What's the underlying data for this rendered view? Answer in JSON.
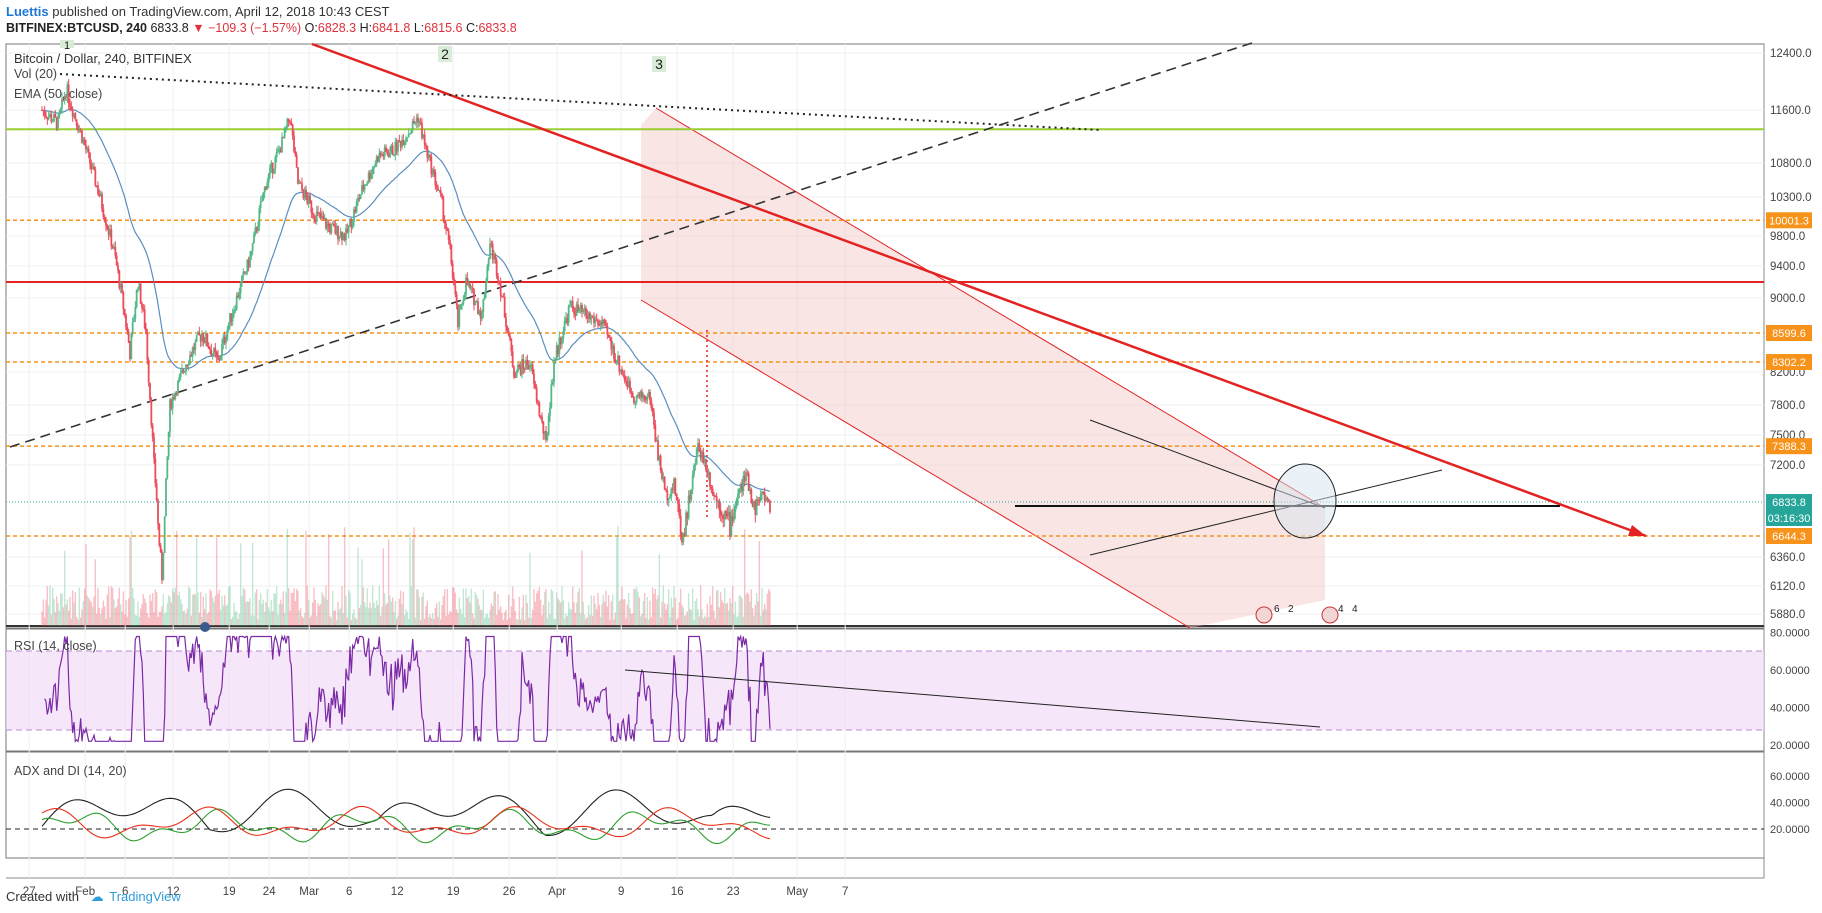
{
  "header": {
    "author": "Luettis",
    "published_text": "published on TradingView.com, April 12, 2018 10:43 CEST",
    "symbol": "BITFINEX:BTCUSD, 240",
    "price": "6833.8",
    "change": "−109.3 (−1.57%)",
    "o_label": "O:",
    "o_value": "6828.3",
    "h_label": "H:",
    "h_value": "6841.8",
    "l_label": "L:",
    "l_value": "6815.6",
    "c_label": "C:",
    "c_value": "6833.8"
  },
  "footer": {
    "created_with": "Created with",
    "brand": "TradingView"
  },
  "colors": {
    "up": "#53b987",
    "down": "#eb4d5c",
    "ema": "#5b8dbf",
    "rsi": "#7b2aa6",
    "adx": "#222222",
    "di_plus": "#2e9f2e",
    "di_minus": "#e8331c",
    "trend": "#e32222",
    "support": "#f7931a",
    "green_line": "#9acd32"
  },
  "chart_data": [
    {
      "type": "candlestick",
      "title": "Bitcoin / Dollar, 240, BITFINEX",
      "indicators": [
        "Vol (20)",
        "EMA (50, close)"
      ],
      "y_ticks": [
        "12400.0",
        "11600.0",
        "10800.0",
        "10300.0",
        "9800.0",
        "9400.0",
        "9000.0",
        "8200.0",
        "7800.0",
        "7500.0",
        "7200.0",
        "6360.0",
        "6120.0",
        "5880.0"
      ],
      "y_tick_values": [
        12400,
        11600,
        10800,
        10300,
        9800,
        9400,
        9000,
        8200,
        7800,
        7500,
        7200,
        6360,
        6120,
        5880
      ],
      "price_labels": [
        {
          "text": "10001.3",
          "value": 10001.3,
          "color": "#f7931a"
        },
        {
          "text": "8599.6",
          "value": 8599.6,
          "color": "#f7931a"
        },
        {
          "text": "8302.2",
          "value": 8302.2,
          "color": "#f7931a"
        },
        {
          "text": "7388.3",
          "value": 7388.3,
          "color": "#f7931a"
        },
        {
          "text": "6833.8",
          "value": 6833.8,
          "color": "#26a69a"
        },
        {
          "text": "03:16:30",
          "value": 6790,
          "color": "#26a69a"
        },
        {
          "text": "6644.3",
          "value": 6644.3,
          "color": "#f7931a"
        }
      ],
      "horizontal_lines": [
        {
          "value": 11310,
          "color": "#9acd32",
          "style": "solid"
        },
        {
          "value": 10001.3,
          "color": "#f7931a",
          "style": "dashed"
        },
        {
          "value": 9200,
          "color": "#e32222",
          "style": "solid"
        },
        {
          "value": 8599.6,
          "color": "#f7931a",
          "style": "dashed"
        },
        {
          "value": 8302.2,
          "color": "#f7931a",
          "style": "dashed"
        },
        {
          "value": 7388.3,
          "color": "#f7931a",
          "style": "dashed"
        },
        {
          "value": 6644.3,
          "color": "#f7931a",
          "style": "dashed"
        }
      ],
      "wave_labels": [
        "1",
        "2",
        "3"
      ],
      "event_markers": [
        "6",
        "2",
        "4",
        "4"
      ],
      "close_path": [
        {
          "day": 0,
          "close": 11600
        },
        {
          "day": 2,
          "close": 11400
        },
        {
          "day": 3,
          "close": 11900
        },
        {
          "day": 5,
          "close": 11200
        },
        {
          "day": 7,
          "close": 10400
        },
        {
          "day": 9,
          "close": 9600
        },
        {
          "day": 11,
          "close": 8400
        },
        {
          "day": 12,
          "close": 9200
        },
        {
          "day": 13,
          "close": 8600
        },
        {
          "day": 14,
          "close": 7200
        },
        {
          "day": 15,
          "close": 6200
        },
        {
          "day": 16,
          "close": 7800
        },
        {
          "day": 18,
          "close": 8300
        },
        {
          "day": 20,
          "close": 8600
        },
        {
          "day": 22,
          "close": 8300
        },
        {
          "day": 24,
          "close": 8900
        },
        {
          "day": 26,
          "close": 9500
        },
        {
          "day": 28,
          "close": 10500
        },
        {
          "day": 30,
          "close": 11100
        },
        {
          "day": 31,
          "close": 11500
        },
        {
          "day": 32,
          "close": 10500
        },
        {
          "day": 34,
          "close": 10100
        },
        {
          "day": 36,
          "close": 9900
        },
        {
          "day": 38,
          "close": 9800
        },
        {
          "day": 40,
          "close": 10400
        },
        {
          "day": 42,
          "close": 10900
        },
        {
          "day": 44,
          "close": 11000
        },
        {
          "day": 46,
          "close": 11300
        },
        {
          "day": 47,
          "close": 11500
        },
        {
          "day": 48,
          "close": 11000
        },
        {
          "day": 50,
          "close": 10200
        },
        {
          "day": 51,
          "close": 9600
        },
        {
          "day": 52,
          "close": 8700
        },
        {
          "day": 53,
          "close": 9200
        },
        {
          "day": 55,
          "close": 8800
        },
        {
          "day": 56,
          "close": 9700
        },
        {
          "day": 57,
          "close": 9300
        },
        {
          "day": 59,
          "close": 8200
        },
        {
          "day": 61,
          "close": 8300
        },
        {
          "day": 62,
          "close": 7800
        },
        {
          "day": 63,
          "close": 7400
        },
        {
          "day": 64,
          "close": 8300
        },
        {
          "day": 66,
          "close": 8900
        },
        {
          "day": 68,
          "close": 8800
        },
        {
          "day": 70,
          "close": 8700
        },
        {
          "day": 72,
          "close": 8300
        },
        {
          "day": 74,
          "close": 7900
        },
        {
          "day": 76,
          "close": 7900
        },
        {
          "day": 77,
          "close": 7300
        },
        {
          "day": 78,
          "close": 6900
        },
        {
          "day": 79,
          "close": 7000
        },
        {
          "day": 80,
          "close": 6600
        },
        {
          "day": 81,
          "close": 6900
        },
        {
          "day": 82,
          "close": 7400
        },
        {
          "day": 83,
          "close": 7200
        },
        {
          "day": 84,
          "close": 6900
        },
        {
          "day": 85,
          "close": 6800
        },
        {
          "day": 86,
          "close": 6700
        },
        {
          "day": 87,
          "close": 6900
        },
        {
          "day": 88,
          "close": 7100
        },
        {
          "day": 89,
          "close": 6800
        },
        {
          "day": 90,
          "close": 6900
        },
        {
          "day": 91,
          "close": 6834
        }
      ],
      "x_ticks": [
        {
          "label": "27",
          "day": -1.6
        },
        {
          "label": "Feb",
          "day": 5.4
        },
        {
          "label": "6",
          "day": 10.4
        },
        {
          "label": "12",
          "day": 16.4
        },
        {
          "label": "19",
          "day": 23.4
        },
        {
          "label": "24",
          "day": 28.4
        },
        {
          "label": "Mar",
          "day": 33.4
        },
        {
          "label": "6",
          "day": 38.4
        },
        {
          "label": "12",
          "day": 44.4
        },
        {
          "label": "19",
          "day": 51.4
        },
        {
          "label": "26",
          "day": 58.4
        },
        {
          "label": "Apr",
          "day": 64.4
        },
        {
          "label": "9",
          "day": 72.4
        },
        {
          "label": "16",
          "day": 79.4
        },
        {
          "label": "23",
          "day": 86.4
        },
        {
          "label": "May",
          "day": 94.4
        },
        {
          "label": "7",
          "day": 100.4
        }
      ]
    },
    {
      "type": "line",
      "title": "RSI (14, close)",
      "y_ticks": [
        "80.0000",
        "60.0000",
        "40.0000",
        "20.0000"
      ],
      "y_tick_values": [
        80,
        60,
        40,
        20
      ],
      "band": [
        30,
        70
      ]
    },
    {
      "type": "line",
      "title": "ADX and DI (14, 20)",
      "y_ticks": [
        "60.0000",
        "40.0000",
        "20.0000"
      ],
      "y_tick_values": [
        60,
        40,
        20
      ],
      "reference_line": 20,
      "series": [
        {
          "name": "ADX"
        },
        {
          "name": "+DI"
        },
        {
          "name": "-DI"
        }
      ]
    }
  ]
}
